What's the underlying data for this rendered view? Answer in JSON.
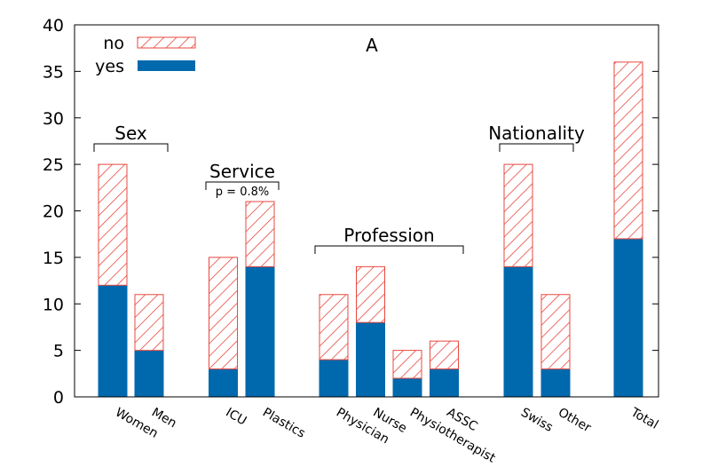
{
  "chart_data": {
    "type": "bar",
    "stacked": true,
    "title": "A",
    "xlabel": "",
    "ylabel": "",
    "ylim": [
      0,
      40
    ],
    "yticks": [
      0,
      5,
      10,
      15,
      20,
      25,
      30,
      35,
      40
    ],
    "categories": [
      "Women",
      "Men",
      "ICU",
      "Plastics",
      "Physician",
      "Nurse",
      "Physiotherapist",
      "ASSC",
      "Swiss",
      "Other",
      "Total"
    ],
    "series": [
      {
        "name": "yes",
        "color": "#0069ad",
        "values": [
          12,
          5,
          3,
          14,
          4,
          8,
          2,
          3,
          14,
          3,
          17
        ]
      },
      {
        "name": "no",
        "color": "#e8483f",
        "pattern": "hatched",
        "values": [
          13,
          6,
          12,
          7,
          7,
          6,
          3,
          3,
          11,
          8,
          19
        ]
      }
    ],
    "legend": {
      "position": "top-left",
      "entries": [
        "no",
        "yes"
      ]
    },
    "groups": [
      {
        "label": "Sex",
        "members": [
          "Women",
          "Men"
        ]
      },
      {
        "label": "Service",
        "members": [
          "ICU",
          "Plastics"
        ],
        "note": "p = 0.8%"
      },
      {
        "label": "Profession",
        "members": [
          "Physician",
          "Nurse",
          "Physiotherapist",
          "ASSC"
        ]
      },
      {
        "label": "Nationality",
        "members": [
          "Swiss",
          "Other"
        ]
      }
    ]
  }
}
